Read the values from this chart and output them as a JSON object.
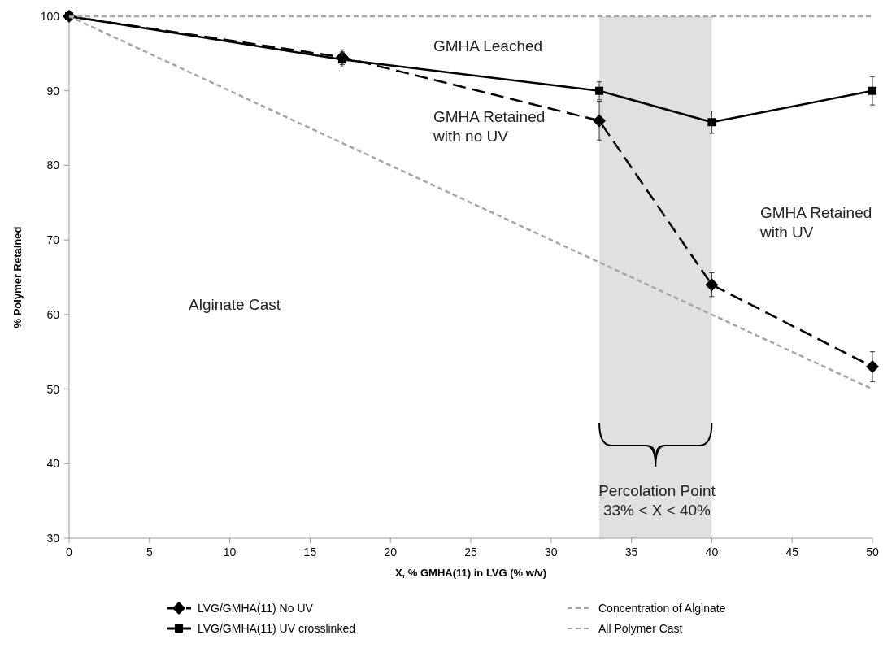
{
  "chart_data": {
    "type": "line",
    "xlabel": "X, % GMHA(11) in LVG (% w/v)",
    "ylabel": "% Polymer Retained",
    "xlim": [
      0,
      50
    ],
    "xticks": [
      0,
      5,
      10,
      15,
      20,
      25,
      30,
      35,
      40,
      45,
      50
    ],
    "ylim": [
      30,
      100
    ],
    "yticks": [
      30,
      40,
      50,
      60,
      70,
      80,
      90,
      100
    ],
    "grid": false,
    "legend": "bottom",
    "series": [
      {
        "name": "LVG/GMHA(11) No UV",
        "color": "#000000",
        "marker": "diamond",
        "line_style": "dashed",
        "x": [
          0,
          17,
          33,
          40,
          50
        ],
        "values": [
          100,
          94.5,
          86,
          64,
          53
        ],
        "errors": [
          null,
          1,
          2.6,
          1.6,
          2
        ]
      },
      {
        "name": "LVG/GMHA(11) UV crosslinked",
        "color": "#000000",
        "marker": "square",
        "line_style": "solid",
        "x": [
          0,
          17,
          33,
          40,
          50
        ],
        "values": [
          100,
          94.2,
          90,
          85.8,
          90
        ],
        "errors": [
          null,
          1,
          1.2,
          1.5,
          1.9
        ]
      },
      {
        "name": "Concentration of Alginate",
        "color": "#a6a6a6",
        "marker": "none",
        "line_style": "dashed",
        "x": [
          0,
          50
        ],
        "values": [
          100,
          100
        ]
      },
      {
        "name": "All Polymer Cast",
        "color": "#a6a6a6",
        "marker": "none",
        "line_style": "dashed",
        "x": [
          0,
          50
        ],
        "values": [
          100,
          50
        ]
      }
    ],
    "bands": [
      {
        "axis": "x",
        "from": 33,
        "to": 40,
        "color": "#e0e0e0"
      }
    ],
    "annotations": [
      "GMHA Leached",
      "GMHA Retained\nwith no UV",
      "GMHA Retained\nwith UV",
      "Alginate Cast",
      "Percolation Point\n33% < X < 40%"
    ]
  }
}
